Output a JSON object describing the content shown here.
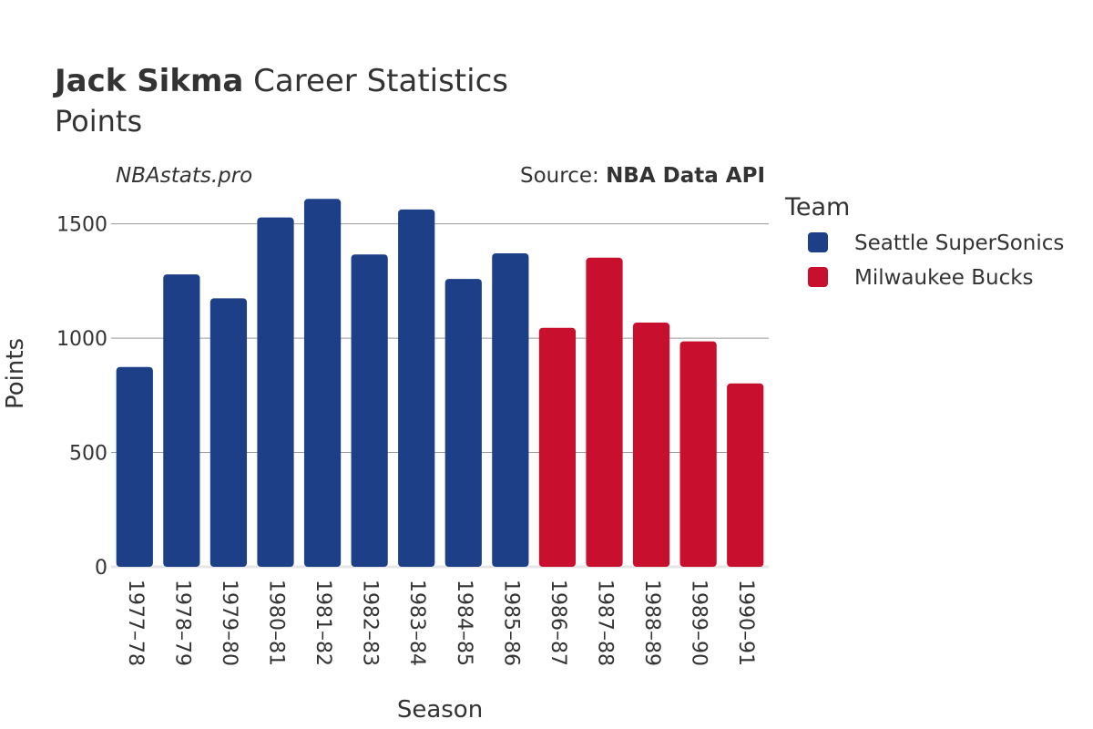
{
  "chart_data": {
    "type": "bar",
    "title_bold": "Jack Sikma",
    "title_rest": " Career Statistics",
    "subtitle": "Points",
    "brand": "NBAstats.pro",
    "source_prefix": "Source: ",
    "source_name": "NBA Data API",
    "xlabel": "Season",
    "ylabel": "Points",
    "ylim": [
      0,
      1650
    ],
    "yticks": [
      0,
      500,
      1000,
      1500
    ],
    "grid": true,
    "legend": {
      "title": "Team",
      "placement": "right",
      "items": [
        {
          "name": "Seattle SuperSonics",
          "color": "#1c3f87"
        },
        {
          "name": "Milwaukee Bucks",
          "color": "#c8102e"
        }
      ]
    },
    "categories": [
      "1977–78",
      "1978–79",
      "1979–80",
      "1980–81",
      "1981–82",
      "1982–83",
      "1983–84",
      "1984–85",
      "1985–86",
      "1986–87",
      "1987–88",
      "1988–89",
      "1989–90",
      "1990–91"
    ],
    "values": [
      874,
      1279,
      1174,
      1528,
      1609,
      1366,
      1563,
      1259,
      1371,
      1045,
      1352,
      1068,
      986,
      802
    ],
    "teams": [
      "Seattle SuperSonics",
      "Seattle SuperSonics",
      "Seattle SuperSonics",
      "Seattle SuperSonics",
      "Seattle SuperSonics",
      "Seattle SuperSonics",
      "Seattle SuperSonics",
      "Seattle SuperSonics",
      "Seattle SuperSonics",
      "Milwaukee Bucks",
      "Milwaukee Bucks",
      "Milwaukee Bucks",
      "Milwaukee Bucks",
      "Milwaukee Bucks"
    ]
  }
}
